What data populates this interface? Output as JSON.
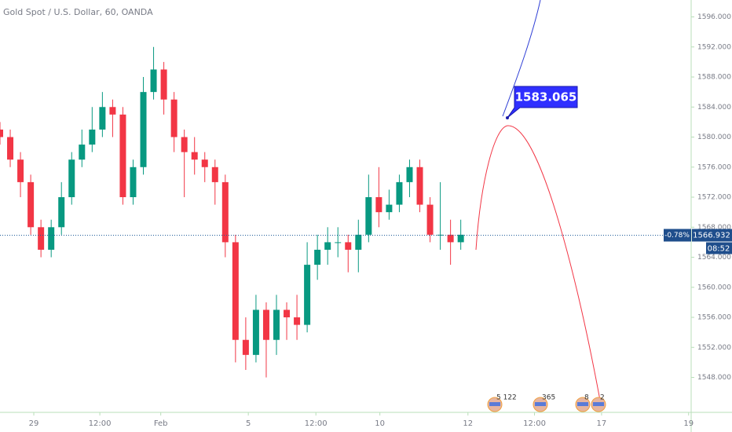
{
  "chart_data": {
    "type": "candlestick",
    "title": "Gold Spot / U.S. Dollar, 60, OANDA",
    "x": [
      0,
      2,
      4,
      6,
      8,
      10,
      12,
      14,
      16,
      18,
      20,
      22,
      24,
      26,
      28,
      30,
      32,
      34,
      36,
      38,
      40,
      42,
      44,
      46,
      48,
      50,
      52,
      54,
      56,
      58,
      60,
      62,
      64,
      66,
      68,
      70,
      72,
      74,
      76,
      78,
      80,
      82,
      84,
      86,
      88,
      90
    ],
    "open": [
      1581,
      1580,
      1577,
      1574,
      1568,
      1565,
      1568,
      1572,
      1577,
      1579,
      1581,
      1584,
      1583,
      1572,
      1576,
      1586,
      1589,
      1585,
      1580,
      1578,
      1577,
      1576,
      1574,
      1566,
      1553,
      1551,
      1557,
      1553,
      1557,
      1556,
      1555,
      1563,
      1565,
      1566,
      1566,
      1565,
      1567,
      1572,
      1570,
      1571,
      1574,
      1576,
      1571,
      1567,
      1567,
      1566
    ],
    "high": [
      1582,
      1581,
      1578,
      1575,
      1569,
      1569,
      1574,
      1578,
      1581,
      1584,
      1586,
      1585,
      1584,
      1577,
      1588,
      1592,
      1590,
      1586,
      1581,
      1580,
      1578,
      1577,
      1575,
      1567,
      1556,
      1559,
      1558,
      1559,
      1558,
      1559,
      1566,
      1567,
      1568,
      1568,
      1567,
      1569,
      1575,
      1576,
      1573,
      1575,
      1577,
      1577,
      1572,
      1574,
      1569,
      1569
    ],
    "low": [
      1579,
      1576,
      1572,
      1567,
      1564,
      1564,
      1567,
      1571,
      1576,
      1578,
      1580,
      1580,
      1571,
      1571,
      1575,
      1585,
      1583,
      1578,
      1572,
      1575,
      1574,
      1571,
      1564,
      1550,
      1549,
      1550,
      1548,
      1551,
      1553,
      1553,
      1554,
      1561,
      1563,
      1564,
      1562,
      1562,
      1566,
      1568,
      1569,
      1570,
      1572,
      1570,
      1566,
      1565,
      1563,
      1565
    ],
    "close": [
      1580,
      1577,
      1574,
      1568,
      1565,
      1568,
      1572,
      1577,
      1579,
      1581,
      1584,
      1583,
      1572,
      1576,
      1586,
      1589,
      1585,
      1580,
      1578,
      1577,
      1576,
      1574,
      1566,
      1553,
      1551,
      1557,
      1553,
      1557,
      1556,
      1555,
      1563,
      1565,
      1566,
      1566,
      1565,
      1567,
      1572,
      1570,
      1571,
      1574,
      1576,
      1571,
      1567,
      1567,
      1566,
      1567
    ],
    "up_color": "#089981",
    "down_color": "#f23645",
    "xlim": [
      0,
      135
    ],
    "xticks": [
      {
        "value": 6.6,
        "label": "29"
      },
      {
        "value": 19.5,
        "label": "12:00"
      },
      {
        "value": 31.4,
        "label": "Feb"
      },
      {
        "value": 48.5,
        "label": "5"
      },
      {
        "value": 61.7,
        "label": "12:00"
      },
      {
        "value": 74.2,
        "label": "10"
      },
      {
        "value": 91.4,
        "label": "12"
      },
      {
        "value": 104.4,
        "label": "12:00"
      },
      {
        "value": 117.5,
        "label": "17"
      },
      {
        "value": 134.5,
        "label": "19"
      }
    ],
    "ylim": [
      1543.35,
      1598.25
    ],
    "yticks": [
      {
        "value": 1548,
        "label": "1548.000"
      },
      {
        "value": 1552,
        "label": "1552.000"
      },
      {
        "value": 1556,
        "label": "1556.000"
      },
      {
        "value": 1560,
        "label": "1560.000"
      },
      {
        "value": 1564,
        "label": "1564.000"
      },
      {
        "value": 1568,
        "label": "1568.000"
      },
      {
        "value": 1572,
        "label": "1572.000"
      },
      {
        "value": 1576,
        "label": "1576.000"
      },
      {
        "value": 1580,
        "label": "1580.000"
      },
      {
        "value": 1584,
        "label": "1584.000"
      },
      {
        "value": 1588,
        "label": "1588.000"
      },
      {
        "value": 1592,
        "label": "1592.000"
      },
      {
        "value": 1596,
        "label": "1596.000"
      }
    ],
    "current_price": {
      "value": 1566.932,
      "label": "1566.932",
      "change": "-0.78%",
      "countdown": "08:52"
    },
    "annotation": "1583.065",
    "events": [
      "5 122",
      "365",
      "8",
      "2"
    ]
  }
}
